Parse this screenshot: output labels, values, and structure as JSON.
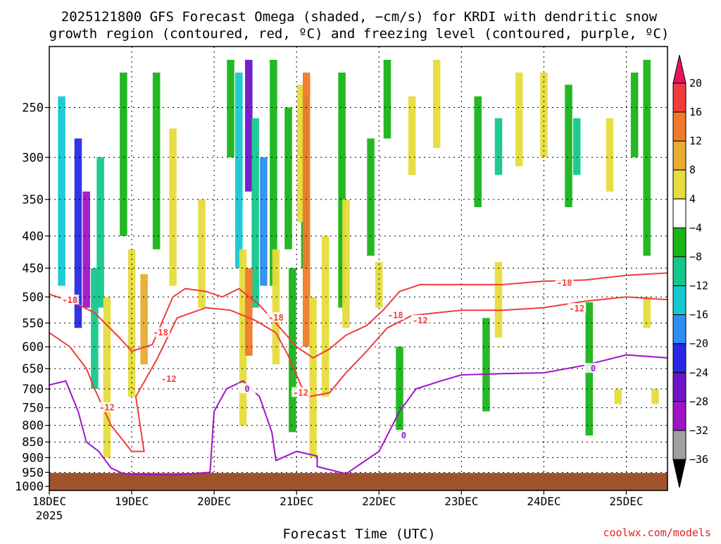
{
  "title_lines": [
    "2025121800 GFS Forecast Omega (shaded, −cm/s) for KRDI with dendritic snow",
    "growth region (contoured, red, ºC) and freezing level (contoured, purple, ºC)"
  ],
  "watermark": "coolwx.com/models",
  "chart_data": {
    "type": "heatmap",
    "xlabel": "Forecast Time (UTC)",
    "ylabel": "",
    "x_ticks": [
      "18DEC",
      "19DEC",
      "20DEC",
      "21DEC",
      "22DEC",
      "23DEC",
      "24DEC",
      "25DEC"
    ],
    "x_year_label": "2025",
    "x_range_days": [
      0,
      7.5
    ],
    "y_ticks": [
      250,
      300,
      350,
      400,
      450,
      500,
      550,
      600,
      650,
      700,
      750,
      800,
      850,
      900,
      950,
      1000
    ],
    "y_range_hpa": [
      200,
      1015
    ],
    "y_scale": "log-pressure (inverted)",
    "grid": true,
    "colorbar": {
      "labels": [
        "20",
        "16",
        "12",
        "8",
        "4",
        "−4",
        "−8",
        "−12",
        "−16",
        "−20",
        "−24",
        "−28",
        "−32",
        "−36"
      ],
      "colors": [
        "#e8145a",
        "#f03c3c",
        "#f07a28",
        "#e6ad32",
        "#e6dc3c",
        "#ffffff",
        "#18b418",
        "#14c88c",
        "#14c8d2",
        "#2c8ef0",
        "#2828e6",
        "#6e14c8",
        "#a014c8",
        "#a0a0a0",
        "#000000"
      ]
    },
    "shading_cells": [
      {
        "x": 0.15,
        "p0": 240,
        "p1": 480,
        "val": -14
      },
      {
        "x": 0.35,
        "p0": 280,
        "p1": 560,
        "val": -22
      },
      {
        "x": 0.45,
        "p0": 340,
        "p1": 520,
        "val": -30
      },
      {
        "x": 0.55,
        "p0": 450,
        "p1": 700,
        "val": -8
      },
      {
        "x": 0.62,
        "p0": 300,
        "p1": 520,
        "val": -8
      },
      {
        "x": 0.9,
        "p0": 220,
        "p1": 400,
        "val": -6
      },
      {
        "x": 1.3,
        "p0": 220,
        "p1": 420,
        "val": -6
      },
      {
        "x": 2.2,
        "p0": 210,
        "p1": 300,
        "val": -6
      },
      {
        "x": 2.3,
        "p0": 220,
        "p1": 450,
        "val": -14
      },
      {
        "x": 2.42,
        "p0": 210,
        "p1": 340,
        "val": -26
      },
      {
        "x": 2.5,
        "p0": 260,
        "p1": 520,
        "val": -10
      },
      {
        "x": 2.6,
        "p0": 300,
        "p1": 480,
        "val": -18
      },
      {
        "x": 2.72,
        "p0": 210,
        "p1": 480,
        "val": -6
      },
      {
        "x": 2.9,
        "p0": 250,
        "p1": 420,
        "val": -6
      },
      {
        "x": 2.95,
        "p0": 450,
        "p1": 820,
        "val": -6
      },
      {
        "x": 3.1,
        "p0": 240,
        "p1": 450,
        "val": -6
      },
      {
        "x": 3.55,
        "p0": 220,
        "p1": 520,
        "val": -6
      },
      {
        "x": 3.9,
        "p0": 280,
        "p1": 430,
        "val": -6
      },
      {
        "x": 4.1,
        "p0": 210,
        "p1": 280,
        "val": -6
      },
      {
        "x": 4.25,
        "p0": 600,
        "p1": 820,
        "val": -6
      },
      {
        "x": 5.2,
        "p0": 240,
        "p1": 360,
        "val": -6
      },
      {
        "x": 5.3,
        "p0": 540,
        "p1": 760,
        "val": -6
      },
      {
        "x": 5.45,
        "p0": 260,
        "p1": 320,
        "val": -10
      },
      {
        "x": 6.3,
        "p0": 230,
        "p1": 360,
        "val": -6
      },
      {
        "x": 6.4,
        "p0": 260,
        "p1": 320,
        "val": -10
      },
      {
        "x": 6.55,
        "p0": 510,
        "p1": 830,
        "val": -6
      },
      {
        "x": 7.1,
        "p0": 220,
        "p1": 300,
        "val": -6
      },
      {
        "x": 7.25,
        "p0": 210,
        "p1": 430,
        "val": -6
      },
      {
        "x": 0.7,
        "p0": 500,
        "p1": 900,
        "val": 5
      },
      {
        "x": 1.0,
        "p0": 420,
        "p1": 720,
        "val": 5
      },
      {
        "x": 1.15,
        "p0": 460,
        "p1": 640,
        "val": 9
      },
      {
        "x": 1.5,
        "p0": 270,
        "p1": 480,
        "val": 5
      },
      {
        "x": 1.85,
        "p0": 350,
        "p1": 520,
        "val": 5
      },
      {
        "x": 2.35,
        "p0": 420,
        "p1": 800,
        "val": 6
      },
      {
        "x": 2.42,
        "p0": 450,
        "p1": 620,
        "val": 13
      },
      {
        "x": 2.75,
        "p0": 420,
        "p1": 640,
        "val": 5
      },
      {
        "x": 3.05,
        "p0": 230,
        "p1": 380,
        "val": 6
      },
      {
        "x": 3.12,
        "p0": 220,
        "p1": 600,
        "val": 14
      },
      {
        "x": 3.2,
        "p0": 500,
        "p1": 900,
        "val": 7
      },
      {
        "x": 3.35,
        "p0": 400,
        "p1": 720,
        "val": 5
      },
      {
        "x": 3.6,
        "p0": 350,
        "p1": 560,
        "val": 5
      },
      {
        "x": 4.0,
        "p0": 440,
        "p1": 520,
        "val": 5
      },
      {
        "x": 4.4,
        "p0": 240,
        "p1": 320,
        "val": 5
      },
      {
        "x": 4.7,
        "p0": 210,
        "p1": 290,
        "val": 5
      },
      {
        "x": 5.45,
        "p0": 440,
        "p1": 580,
        "val": 5
      },
      {
        "x": 5.7,
        "p0": 220,
        "p1": 310,
        "val": 5
      },
      {
        "x": 6.0,
        "p0": 220,
        "p1": 300,
        "val": 5
      },
      {
        "x": 6.8,
        "p0": 260,
        "p1": 340,
        "val": 5
      },
      {
        "x": 6.9,
        "p0": 700,
        "p1": 740,
        "val": 5
      },
      {
        "x": 7.25,
        "p0": 500,
        "p1": 560,
        "val": 5
      },
      {
        "x": 7.35,
        "p0": 700,
        "p1": 740,
        "val": 5
      }
    ],
    "series": [
      {
        "name": "-18",
        "color": "#f03c3c",
        "points": [
          [
            0,
            495
          ],
          [
            0.3,
            510
          ],
          [
            0.55,
            530
          ],
          [
            0.85,
            580
          ],
          [
            1.0,
            610
          ],
          [
            1.25,
            595
          ],
          [
            1.5,
            500
          ],
          [
            1.65,
            485
          ],
          [
            1.9,
            490
          ],
          [
            2.1,
            500
          ],
          [
            2.3,
            485
          ],
          [
            2.55,
            515
          ],
          [
            2.8,
            560
          ],
          [
            3.0,
            600
          ],
          [
            3.2,
            625
          ],
          [
            3.4,
            605
          ],
          [
            3.6,
            575
          ],
          [
            3.85,
            555
          ],
          [
            4.05,
            525
          ],
          [
            4.25,
            490
          ],
          [
            4.5,
            478
          ],
          [
            5.0,
            478
          ],
          [
            5.5,
            478
          ],
          [
            6.0,
            472
          ],
          [
            6.5,
            470
          ],
          [
            7.0,
            462
          ],
          [
            7.5,
            458
          ]
        ]
      },
      {
        "name": "-12",
        "color": "#f03c3c",
        "points": [
          [
            0,
            570
          ],
          [
            0.25,
            600
          ],
          [
            0.45,
            650
          ],
          [
            0.55,
            700
          ],
          [
            0.75,
            800
          ],
          [
            1.0,
            880
          ],
          [
            1.15,
            880
          ],
          [
            1.05,
            720
          ],
          [
            1.3,
            630
          ],
          [
            1.55,
            540
          ],
          [
            1.9,
            520
          ],
          [
            2.2,
            525
          ],
          [
            2.5,
            545
          ],
          [
            2.75,
            570
          ],
          [
            2.9,
            620
          ],
          [
            3.05,
            690
          ],
          [
            3.15,
            720
          ],
          [
            3.4,
            710
          ],
          [
            3.6,
            660
          ],
          [
            3.85,
            610
          ],
          [
            4.1,
            560
          ],
          [
            4.4,
            535
          ],
          [
            5.0,
            525
          ],
          [
            5.5,
            525
          ],
          [
            6.0,
            520
          ],
          [
            6.5,
            508
          ],
          [
            7.0,
            500
          ],
          [
            7.5,
            505
          ]
        ]
      },
      {
        "name": "0",
        "color": "#a014c8",
        "points": [
          [
            0,
            690
          ],
          [
            0.2,
            680
          ],
          [
            0.35,
            760
          ],
          [
            0.45,
            850
          ],
          [
            0.6,
            880
          ],
          [
            0.75,
            935
          ],
          [
            0.9,
            955
          ],
          [
            1.5,
            960
          ],
          [
            1.95,
            950
          ],
          [
            2.0,
            760
          ],
          [
            2.15,
            700
          ],
          [
            2.35,
            680
          ],
          [
            2.55,
            720
          ],
          [
            2.7,
            820
          ],
          [
            2.75,
            910
          ],
          [
            3.0,
            880
          ],
          [
            3.25,
            895
          ],
          [
            3.25,
            930
          ],
          [
            3.6,
            955
          ],
          [
            4.0,
            880
          ],
          [
            4.25,
            760
          ],
          [
            4.45,
            700
          ],
          [
            4.75,
            680
          ],
          [
            5.0,
            665
          ],
          [
            5.5,
            662
          ],
          [
            6.0,
            660
          ],
          [
            6.5,
            642
          ],
          [
            7.0,
            618
          ],
          [
            7.5,
            625
          ]
        ]
      }
    ],
    "terrain_top_hpa": 952,
    "contour_labels": [
      {
        "text": "-18",
        "x": 0.25,
        "p": 506,
        "series": "-18"
      },
      {
        "text": "-18",
        "x": 1.35,
        "p": 570,
        "series": "-18"
      },
      {
        "text": "-18",
        "x": 2.75,
        "p": 540,
        "series": "-18"
      },
      {
        "text": "-18",
        "x": 4.2,
        "p": 535,
        "series": "-18"
      },
      {
        "text": "-18",
        "x": 6.25,
        "p": 475,
        "series": "-18"
      },
      {
        "text": "-12",
        "x": 0.7,
        "p": 750,
        "series": "-12"
      },
      {
        "text": "-12",
        "x": 1.45,
        "p": 675,
        "series": "-12"
      },
      {
        "text": "-12",
        "x": 3.05,
        "p": 710,
        "series": "-12"
      },
      {
        "text": "-12",
        "x": 4.5,
        "p": 545,
        "series": "-12"
      },
      {
        "text": "-12",
        "x": 6.4,
        "p": 522,
        "series": "-12"
      },
      {
        "text": "0",
        "x": 2.4,
        "p": 700,
        "series": "0"
      },
      {
        "text": "0",
        "x": 4.3,
        "p": 830,
        "series": "0"
      },
      {
        "text": "0",
        "x": 6.6,
        "p": 650,
        "series": "0"
      }
    ]
  }
}
